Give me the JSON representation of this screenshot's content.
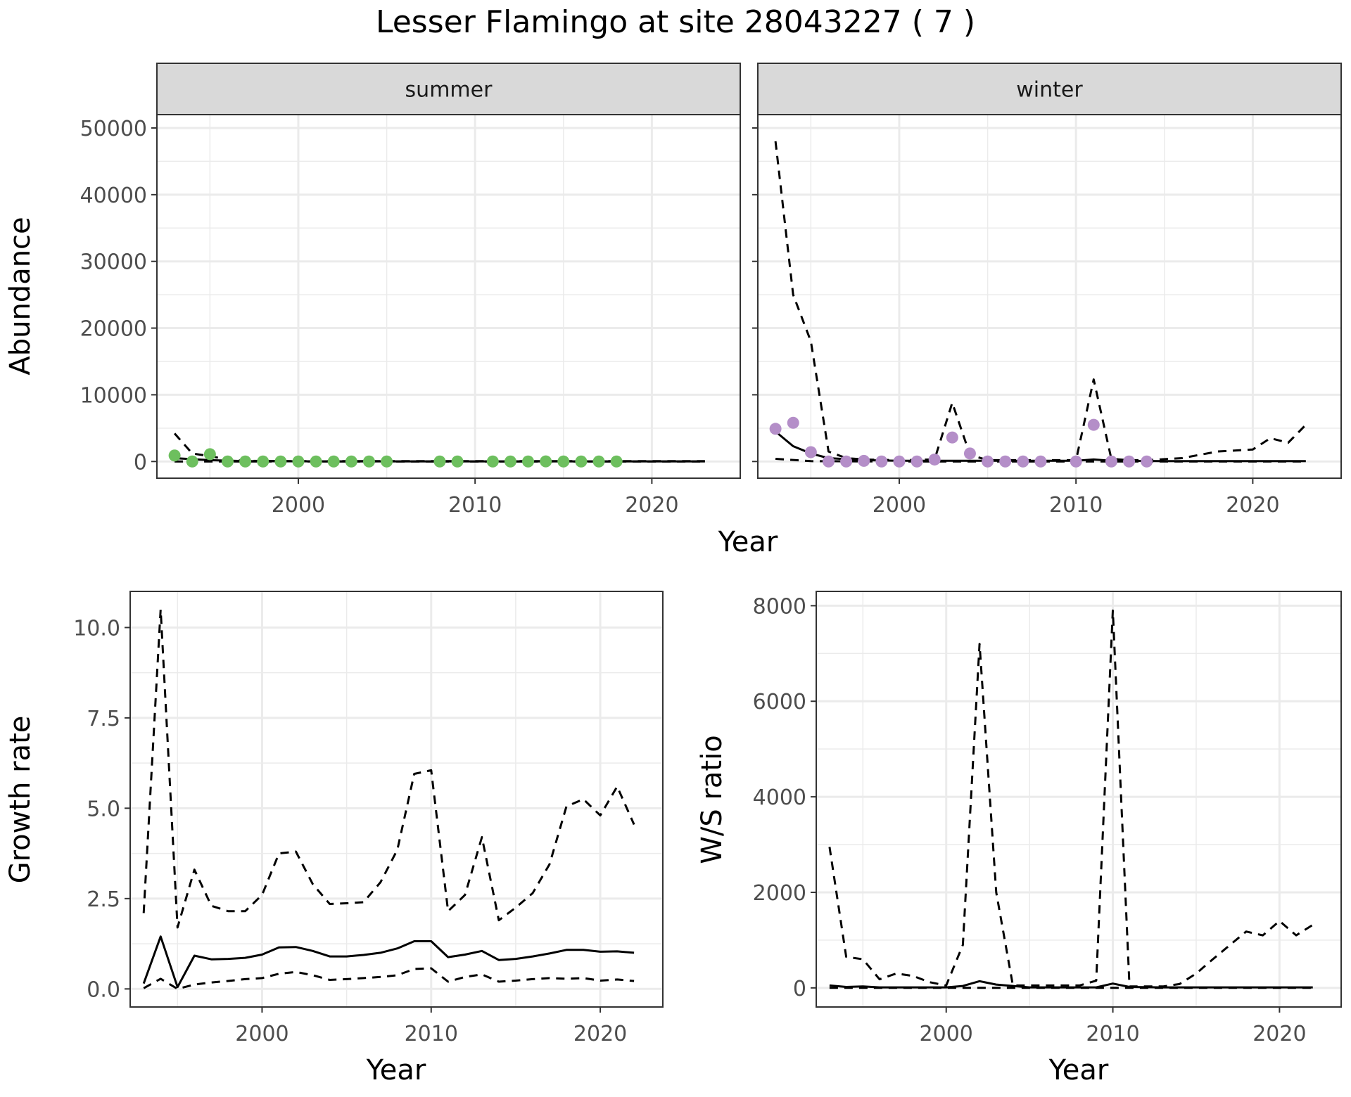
{
  "title": "Lesser Flamingo at site 28043227 ( 7 )",
  "colors": {
    "summer_points": "#6dbf5e",
    "winter_points": "#b48ec8",
    "lines": "#000000",
    "grid": "#ebebeb",
    "strip": "#d9d9d9"
  },
  "chart_data": [
    {
      "type": "scatter",
      "facet": "summer",
      "xlabel": "Year",
      "ylabel": "Abundance",
      "xlim": [
        1992,
        2025
      ],
      "ylim": [
        -2500,
        52000
      ],
      "xticks": [
        2000,
        2010,
        2020
      ],
      "yticks": [
        0,
        10000,
        20000,
        30000,
        40000,
        50000
      ],
      "grid": true,
      "points": {
        "x": [
          1993,
          1994,
          1995,
          1996,
          1997,
          1998,
          1999,
          2000,
          2001,
          2002,
          2003,
          2004,
          2005,
          2008,
          2009,
          2011,
          2012,
          2013,
          2014,
          2015,
          2016,
          2017,
          2018
        ],
        "y": [
          900,
          0,
          1100,
          0,
          0,
          0,
          0,
          0,
          0,
          0,
          0,
          0,
          0,
          0,
          0,
          0,
          0,
          0,
          20,
          0,
          0,
          0,
          0
        ]
      },
      "lines": [
        {
          "style": "solid",
          "x": [
            1993,
            1995,
            1997,
            2000,
            2005,
            2010,
            2015,
            2020,
            2023
          ],
          "y": [
            500,
            200,
            60,
            30,
            20,
            20,
            20,
            20,
            20
          ]
        },
        {
          "style": "dashed",
          "x": [
            1993,
            1994,
            1995,
            1996,
            1997,
            2000,
            2005,
            2010,
            2015,
            2020,
            2023
          ],
          "y": [
            4200,
            1200,
            800,
            300,
            100,
            50,
            50,
            50,
            50,
            50,
            50
          ]
        },
        {
          "style": "dashed",
          "x": [
            1993,
            1995,
            2000,
            2010,
            2020,
            2023
          ],
          "y": [
            0,
            0,
            0,
            0,
            0,
            0
          ]
        }
      ]
    },
    {
      "type": "scatter",
      "facet": "winter",
      "xlabel": "Year",
      "ylabel": "Abundance",
      "xlim": [
        1992,
        2025
      ],
      "ylim": [
        -2500,
        52000
      ],
      "xticks": [
        2000,
        2010,
        2020
      ],
      "yticks": [
        0,
        10000,
        20000,
        30000,
        40000,
        50000
      ],
      "grid": true,
      "points": {
        "x": [
          1993,
          1994,
          1995,
          1996,
          1997,
          1998,
          1999,
          2000,
          2001,
          2002,
          2003,
          2004,
          2005,
          2006,
          2007,
          2008,
          2010,
          2011,
          2012,
          2013,
          2014
        ],
        "y": [
          4900,
          5800,
          1400,
          0,
          0,
          100,
          0,
          0,
          0,
          300,
          3600,
          1200,
          0,
          0,
          0,
          0,
          0,
          5500,
          0,
          0,
          0
        ]
      },
      "lines": [
        {
          "style": "solid",
          "x": [
            1993,
            1994,
            1995,
            1996,
            1998,
            2000,
            2005,
            2010,
            2011,
            2012,
            2015,
            2020,
            2023
          ],
          "y": [
            4500,
            2300,
            1200,
            500,
            200,
            100,
            100,
            100,
            300,
            100,
            50,
            50,
            50
          ]
        },
        {
          "style": "dashed",
          "x": [
            1993,
            1994,
            1995,
            1996,
            1997,
            1998,
            2000,
            2002,
            2003,
            2004,
            2005,
            2008,
            2010,
            2011,
            2012,
            2013,
            2014,
            2016,
            2018,
            2020,
            2021,
            2022,
            2023
          ],
          "y": [
            48000,
            25000,
            18000,
            1500,
            500,
            300,
            200,
            300,
            8800,
            1000,
            200,
            200,
            200,
            12300,
            400,
            200,
            200,
            500,
            1500,
            1800,
            3500,
            2800,
            5500
          ]
        },
        {
          "style": "dashed",
          "x": [
            1993,
            1995,
            2000,
            2010,
            2020,
            2023
          ],
          "y": [
            400,
            50,
            0,
            0,
            0,
            0
          ]
        }
      ]
    },
    {
      "type": "line",
      "xlabel": "Year",
      "ylabel": "Growth rate",
      "xlim": [
        1992.2,
        2023.7
      ],
      "ylim": [
        -0.5,
        11
      ],
      "xticks": [
        2000,
        2010,
        2020
      ],
      "yticks": [
        0.0,
        2.5,
        5.0,
        7.5,
        10.0
      ],
      "ytick_labels": [
        "0.0",
        "2.5",
        "5.0",
        "7.5",
        "10.0"
      ],
      "grid": true,
      "lines": [
        {
          "style": "solid",
          "x": [
            1993,
            1994,
            1995,
            1996,
            1997,
            1998,
            1999,
            2000,
            2001,
            2002,
            2003,
            2004,
            2005,
            2006,
            2007,
            2008,
            2009,
            2010,
            2011,
            2012,
            2013,
            2014,
            2015,
            2016,
            2017,
            2018,
            2019,
            2020,
            2021,
            2022
          ],
          "y": [
            0.15,
            1.45,
            0.05,
            0.92,
            0.82,
            0.83,
            0.86,
            0.95,
            1.15,
            1.16,
            1.05,
            0.9,
            0.9,
            0.94,
            1.0,
            1.12,
            1.32,
            1.32,
            0.88,
            0.95,
            1.05,
            0.8,
            0.83,
            0.9,
            0.98,
            1.08,
            1.08,
            1.03,
            1.04,
            1.0
          ]
        },
        {
          "style": "dashed",
          "x": [
            1993,
            1994,
            1995,
            1996,
            1997,
            1998,
            1999,
            2000,
            2001,
            2002,
            2003,
            2004,
            2005,
            2006,
            2007,
            2008,
            2009,
            2010,
            2011,
            2012,
            2013,
            2014,
            2015,
            2016,
            2017,
            2018,
            2019,
            2020,
            2021,
            2022
          ],
          "y": [
            2.1,
            10.5,
            1.7,
            3.3,
            2.3,
            2.15,
            2.15,
            2.6,
            3.75,
            3.8,
            2.9,
            2.35,
            2.37,
            2.4,
            2.95,
            3.85,
            5.95,
            6.05,
            2.15,
            2.6,
            4.2,
            1.9,
            2.25,
            2.65,
            3.45,
            5.05,
            5.25,
            4.8,
            5.6,
            4.55
          ]
        },
        {
          "style": "dashed",
          "x": [
            1993,
            1994,
            1995,
            1996,
            1997,
            1998,
            1999,
            2000,
            2001,
            2002,
            2003,
            2004,
            2005,
            2006,
            2007,
            2008,
            2009,
            2010,
            2011,
            2012,
            2013,
            2014,
            2015,
            2016,
            2017,
            2018,
            2019,
            2020,
            2021,
            2022
          ],
          "y": [
            0.02,
            0.28,
            0.0,
            0.12,
            0.18,
            0.22,
            0.27,
            0.3,
            0.42,
            0.47,
            0.38,
            0.25,
            0.27,
            0.3,
            0.33,
            0.38,
            0.55,
            0.57,
            0.2,
            0.33,
            0.4,
            0.2,
            0.23,
            0.27,
            0.3,
            0.28,
            0.3,
            0.23,
            0.26,
            0.22
          ]
        }
      ]
    },
    {
      "type": "line",
      "xlabel": "Year",
      "ylabel": "W/S ratio",
      "xlim": [
        1992.2,
        2023.7
      ],
      "ylim": [
        -400,
        8300
      ],
      "xticks": [
        2000,
        2010,
        2020
      ],
      "yticks": [
        0,
        2000,
        4000,
        6000,
        8000
      ],
      "grid": true,
      "lines": [
        {
          "style": "solid",
          "x": [
            1993,
            1994,
            1995,
            1996,
            1998,
            2000,
            2001,
            2002,
            2003,
            2005,
            2009,
            2010,
            2011,
            2013,
            2015,
            2020,
            2022
          ],
          "y": [
            50,
            20,
            30,
            10,
            10,
            10,
            40,
            140,
            70,
            10,
            10,
            90,
            20,
            10,
            10,
            10,
            10
          ]
        },
        {
          "style": "dashed",
          "x": [
            1993,
            1994,
            1995,
            1996,
            1997,
            1998,
            1999,
            2000,
            2001,
            2002,
            2003,
            2004,
            2005,
            2008,
            2009,
            2010,
            2011,
            2013,
            2014,
            2015,
            2016,
            2018,
            2019,
            2020,
            2021,
            2022
          ],
          "y": [
            2950,
            650,
            600,
            180,
            300,
            250,
            120,
            50,
            900,
            7200,
            2000,
            50,
            50,
            50,
            150,
            7900,
            30,
            30,
            80,
            300,
            600,
            1180,
            1100,
            1400,
            1100,
            1320
          ]
        },
        {
          "style": "dashed",
          "x": [
            1993,
            1995,
            2000,
            2005,
            2010,
            2015,
            2020,
            2022
          ],
          "y": [
            0,
            0,
            0,
            0,
            0,
            0,
            0,
            0
          ]
        }
      ]
    }
  ]
}
